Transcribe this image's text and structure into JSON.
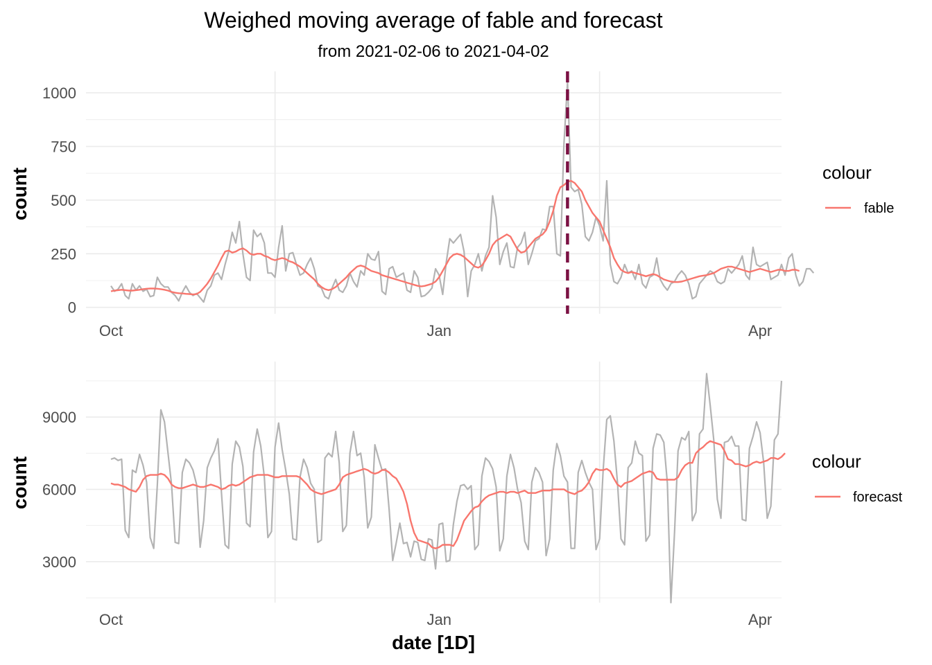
{
  "title": "Weighed moving average of fable and forecast",
  "subtitle": "from 2021-02-06 to 2021-04-02",
  "colors": {
    "raw": "#b3b3b3",
    "smooth": "#f8766d",
    "event_line": "#7b1143",
    "grid": "#ebebeb"
  },
  "chart_data": [
    {
      "type": "line",
      "panel": "top",
      "xlabel": "",
      "ylabel": "count",
      "x_ticks": [
        "Oct",
        "Jan",
        "Apr"
      ],
      "x_tick_dates": [
        "2020-10-01",
        "2021-01-01",
        "2021-04-01"
      ],
      "x_range": [
        "2020-09-24",
        "2021-04-07"
      ],
      "y_ticks": [
        "0",
        "250",
        "500",
        "750",
        "1000"
      ],
      "y_tick_values": [
        0,
        250,
        500,
        750,
        1000
      ],
      "ylim": [
        -30,
        1100
      ],
      "grid": true,
      "legend_title": "colour",
      "legend_label": "fable",
      "legend_position": "right",
      "event_date": "2021-02-06",
      "start_date": "2020-10-01",
      "series": [
        {
          "values": [
            100,
            75,
            85,
            110,
            55,
            40,
            110,
            80,
            100,
            75,
            85,
            50,
            55,
            140,
            110,
            95,
            95,
            70,
            55,
            30,
            70,
            100,
            70,
            55,
            65,
            45,
            25,
            80,
            100,
            150,
            160,
            130,
            200,
            260,
            350,
            300,
            400,
            250,
            140,
            125,
            360,
            330,
            345,
            300,
            160,
            160,
            140,
            280,
            380,
            170,
            250,
            255,
            200,
            150,
            160,
            200,
            230,
            180,
            100,
            90,
            50,
            40,
            90,
            130,
            80,
            70,
            100,
            160,
            120,
            95,
            170,
            150,
            250,
            225,
            220,
            260,
            75,
            60,
            180,
            190,
            140,
            150,
            160,
            80,
            70,
            170,
            140,
            50,
            55,
            70,
            90,
            180,
            150,
            60,
            210,
            320,
            300,
            320,
            340,
            260,
            50,
            170,
            200,
            250,
            170,
            240,
            280,
            520,
            420,
            200,
            260,
            300,
            190,
            185,
            280,
            300,
            350,
            200,
            250,
            310,
            320,
            365,
            360,
            470,
            470,
            250,
            240,
            760,
            1050,
            560,
            540,
            550,
            480,
            330,
            310,
            350,
            420,
            380,
            310,
            590,
            200,
            120,
            110,
            140,
            200,
            160,
            170,
            130,
            200,
            110,
            90,
            140,
            150,
            230,
            130,
            100,
            80,
            110,
            120,
            150,
            170,
            150,
            110,
            40,
            50,
            110,
            130,
            150,
            170,
            160,
            120,
            110,
            120,
            180,
            160,
            180,
            200,
            240,
            150,
            130,
            280,
            200,
            190,
            200,
            210,
            130,
            140,
            150,
            200,
            150,
            230,
            250,
            150,
            100,
            120,
            180,
            180,
            160
          ]
        },
        {
          "values": [
            75,
            78,
            80,
            82,
            80,
            78,
            78,
            80,
            82,
            85,
            87,
            88,
            88,
            87,
            85,
            82,
            78,
            72,
            68,
            66,
            65,
            63,
            62,
            60,
            62,
            72,
            90,
            110,
            135,
            165,
            195,
            230,
            260,
            265,
            255,
            260,
            270,
            275,
            265,
            250,
            245,
            250,
            250,
            240,
            235,
            225,
            220,
            225,
            230,
            225,
            215,
            210,
            200,
            190,
            175,
            160,
            145,
            130,
            110,
            95,
            85,
            80,
            85,
            95,
            110,
            125,
            140,
            160,
            175,
            190,
            195,
            190,
            180,
            170,
            165,
            160,
            150,
            145,
            140,
            135,
            130,
            125,
            120,
            115,
            110,
            105,
            100,
            98,
            100,
            105,
            110,
            120,
            140,
            170,
            200,
            230,
            245,
            250,
            245,
            235,
            220,
            205,
            190,
            185,
            195,
            220,
            250,
            290,
            310,
            320,
            330,
            340,
            330,
            300,
            270,
            255,
            260,
            280,
            300,
            320,
            330,
            340,
            360,
            400,
            450,
            520,
            560,
            570,
            585,
            590,
            580,
            560,
            540,
            500,
            470,
            440,
            420,
            400,
            360,
            320,
            280,
            230,
            200,
            175,
            165,
            160,
            165,
            160,
            155,
            150,
            145,
            150,
            155,
            150,
            140,
            130,
            125,
            120,
            118,
            118,
            120,
            125,
            130,
            135,
            140,
            145,
            148,
            150,
            155,
            160,
            170,
            180,
            185,
            190,
            190,
            185,
            180,
            175,
            170,
            165,
            170,
            175,
            180,
            175,
            170,
            165,
            170,
            175,
            175,
            170,
            170,
            175,
            175,
            170
          ]
        }
      ]
    },
    {
      "type": "line",
      "panel": "bottom",
      "xlabel": "date [1D]",
      "ylabel": "count",
      "x_ticks": [
        "Oct",
        "Jan",
        "Apr"
      ],
      "x_tick_dates": [
        "2020-10-01",
        "2021-01-01",
        "2021-04-01"
      ],
      "x_range": [
        "2020-09-24",
        "2021-04-07"
      ],
      "y_ticks": [
        "3000",
        "6000",
        "9000"
      ],
      "y_tick_values": [
        3000,
        6000,
        9000
      ],
      "ylim": [
        1300,
        11300
      ],
      "grid": true,
      "legend_title": "colour",
      "legend_label": "forecast",
      "legend_position": "right",
      "start_date": "2020-10-01",
      "series": [
        {
          "values": [
            7250,
            7300,
            7200,
            7250,
            4300,
            4000,
            6800,
            6700,
            7450,
            7000,
            6300,
            4000,
            3550,
            6200,
            9300,
            8800,
            7500,
            6200,
            3800,
            3750,
            6700,
            7250,
            7100,
            6800,
            6200,
            3600,
            4700,
            6900,
            7300,
            7600,
            8100,
            5800,
            3700,
            3550,
            7050,
            8000,
            7750,
            6950,
            4600,
            4450,
            7550,
            8500,
            7800,
            6500,
            4000,
            4250,
            7750,
            8750,
            7650,
            6800,
            5800,
            3950,
            3900,
            6500,
            7250,
            6900,
            6250,
            6000,
            3800,
            3900,
            7300,
            7500,
            7350,
            8400,
            7100,
            4250,
            4500,
            7500,
            8400,
            7400,
            7500,
            6500,
            4400,
            4850,
            7850,
            7300,
            6800,
            6850,
            5150,
            3050,
            3800,
            4600,
            3750,
            3800,
            3200,
            3850,
            3800,
            3100,
            3050,
            3950,
            3900,
            2700,
            4550,
            4600,
            3000,
            3050,
            4550,
            5500,
            6150,
            6200,
            6000,
            6150,
            3500,
            3700,
            6550,
            7300,
            7150,
            6850,
            6100,
            3450,
            3950,
            6550,
            7450,
            6900,
            6000,
            5450,
            3850,
            3500,
            6300,
            6900,
            6700,
            6300,
            3250,
            3950,
            6800,
            7900,
            7400,
            6550,
            6300,
            3550,
            3550,
            6700,
            7200,
            6700,
            6300,
            6000,
            3500,
            3950,
            6800,
            8900,
            9050,
            8000,
            6300,
            3950,
            3700,
            6900,
            7100,
            8000,
            7500,
            7400,
            3850,
            4100,
            7700,
            8300,
            8250,
            7950,
            6250,
            1300,
            4200,
            7600,
            8150,
            8050,
            8400,
            4700,
            5050,
            8300,
            8500,
            10800,
            9500,
            8050,
            5600,
            4800,
            7950,
            8000,
            8200,
            7800,
            7800,
            4750,
            4700,
            7700,
            8200,
            8800,
            8350,
            7100,
            4800,
            5300,
            8050,
            8300,
            10500
          ]
        },
        {
          "values": [
            6250,
            6200,
            6200,
            6150,
            6100,
            6000,
            5950,
            5900,
            6100,
            6400,
            6550,
            6600,
            6600,
            6600,
            6650,
            6600,
            6450,
            6200,
            6100,
            6050,
            6050,
            6100,
            6150,
            6200,
            6150,
            6100,
            6100,
            6150,
            6200,
            6150,
            6100,
            6000,
            6050,
            6150,
            6200,
            6150,
            6200,
            6300,
            6400,
            6500,
            6550,
            6600,
            6600,
            6600,
            6600,
            6550,
            6500,
            6500,
            6550,
            6550,
            6550,
            6550,
            6550,
            6500,
            6350,
            6200,
            6000,
            5900,
            5850,
            5800,
            5850,
            5900,
            5950,
            6000,
            6200,
            6500,
            6600,
            6650,
            6700,
            6750,
            6800,
            6850,
            6800,
            6700,
            6650,
            6700,
            6800,
            6800,
            6700,
            6550,
            6450,
            6200,
            5900,
            5400,
            4700,
            4200,
            3900,
            3850,
            3800,
            3750,
            3600,
            3550,
            3600,
            3700,
            3700,
            3700,
            3650,
            3900,
            4300,
            4700,
            4900,
            5100,
            5250,
            5300,
            5500,
            5650,
            5750,
            5800,
            5850,
            5900,
            5900,
            5850,
            5900,
            5900,
            5850,
            5900,
            5950,
            5850,
            5850,
            5850,
            5900,
            5950,
            5950,
            5950,
            6000,
            6000,
            6000,
            6000,
            5900,
            5850,
            5800,
            5900,
            5950,
            6100,
            6300,
            6650,
            6850,
            6800,
            6800,
            6850,
            6750,
            6450,
            6200,
            6100,
            6250,
            6300,
            6350,
            6450,
            6550,
            6650,
            6700,
            6750,
            6700,
            6450,
            6400,
            6400,
            6400,
            6400,
            6400,
            6500,
            6800,
            7000,
            7100,
            7100,
            7500,
            7650,
            7750,
            7900,
            8000,
            7950,
            7900,
            7850,
            7600,
            7250,
            7200,
            7050,
            7050,
            7000,
            6950,
            7000,
            7100,
            7150,
            7100,
            7150,
            7200,
            7300,
            7300,
            7250,
            7350,
            7500
          ]
        }
      ]
    }
  ]
}
